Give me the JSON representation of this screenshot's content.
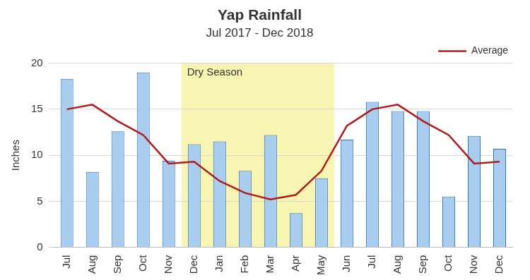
{
  "chart_data": {
    "type": "bar",
    "title": "Yap Rainfall",
    "subtitle": "Jul 2017 - Dec 2018",
    "y_label": "Inches",
    "categories": [
      "Jul",
      "Aug",
      "Sep",
      "Oct",
      "Nov",
      "Dec",
      "Jan",
      "Feb",
      "Mar",
      "Apr",
      "May",
      "Jun",
      "Jul",
      "Aug",
      "Sep",
      "Oct",
      "Nov",
      "Dec"
    ],
    "series": [
      {
        "type": "bar",
        "color": "#a9cdee",
        "values": [
          18.3,
          8.2,
          12.6,
          19.0,
          9.4,
          11.2,
          11.5,
          8.3,
          12.2,
          3.7,
          7.5,
          11.7,
          15.8,
          14.8,
          14.8,
          5.5,
          12.1,
          10.7
        ]
      },
      {
        "name": "Average",
        "type": "line",
        "color": "#b31b1b",
        "values": [
          15.0,
          15.5,
          13.7,
          12.2,
          9.1,
          9.3,
          7.2,
          5.9,
          5.2,
          5.7,
          8.3,
          13.2,
          15.0,
          15.5,
          13.7,
          12.2,
          9.1,
          9.3
        ]
      }
    ],
    "ylim": [
      0,
      20
    ],
    "yticks": [
      0,
      5,
      10,
      15,
      20
    ],
    "grid": true,
    "legend": "upper right",
    "annotations": [
      {
        "text": "Dry Season",
        "from": 5,
        "to": 10,
        "color": "#f8f5b2"
      }
    ]
  }
}
